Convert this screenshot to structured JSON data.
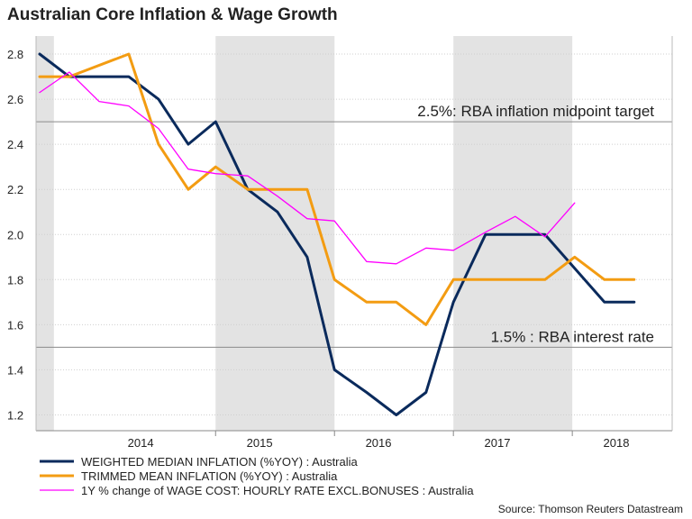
{
  "chart_data": {
    "type": "line",
    "title": "Australian Core Inflation & Wage Growth",
    "source": "Source: Thomson Reuters Datastream",
    "xlabel": "",
    "ylabel": "",
    "x_ticks": [
      {
        "label": "2014",
        "x": 2014.0
      },
      {
        "label": "2015",
        "x": 2015.0
      },
      {
        "label": "2016",
        "x": 2016.0
      },
      {
        "label": "2017",
        "x": 2017.0
      },
      {
        "label": "2018",
        "x": 2018.0
      }
    ],
    "xlim": [
      2013.12,
      2018.47
    ],
    "ylim": [
      1.13,
      2.88
    ],
    "y_ticks": [
      1.2,
      1.4,
      1.6,
      1.8,
      2.0,
      2.2,
      2.4,
      2.6,
      2.8
    ],
    "grid": true,
    "shaded_periods": [
      [
        2013.12,
        2013.27
      ],
      [
        2014.63,
        2015.63
      ],
      [
        2016.63,
        2017.63
      ]
    ],
    "reference_lines": [
      {
        "y": 2.5,
        "label": "2.5%: RBA inflation midpoint target"
      },
      {
        "y": 1.5,
        "label": "1.5% : RBA interest rate"
      }
    ],
    "legend_position": "bottom",
    "series": [
      {
        "name": "WEIGHTED MEDIAN INFLATION (%YOY) : Australia",
        "color": "#0a2a5c",
        "x": [
          2013.15,
          2013.4,
          2013.9,
          2014.15,
          2014.4,
          2014.63,
          2014.9,
          2015.15,
          2015.4,
          2015.63,
          2015.9,
          2016.15,
          2016.4,
          2016.63,
          2016.9,
          2017.4,
          2017.9,
          2018.15
        ],
        "values": [
          2.8,
          2.7,
          2.7,
          2.6,
          2.4,
          2.5,
          2.2,
          2.1,
          1.9,
          1.4,
          1.3,
          1.2,
          1.3,
          1.7,
          2.0,
          2.0,
          1.7,
          1.7
        ]
      },
      {
        "name": "TRIMMED MEAN INFLATION (%YOY) : Australia",
        "color": "#f39c12",
        "x": [
          2013.15,
          2013.4,
          2013.9,
          2014.15,
          2014.4,
          2014.63,
          2014.9,
          2015.15,
          2015.4,
          2015.63,
          2015.9,
          2016.15,
          2016.4,
          2016.63,
          2016.9,
          2017.4,
          2017.65,
          2017.9,
          2018.15
        ],
        "values": [
          2.7,
          2.7,
          2.8,
          2.4,
          2.2,
          2.3,
          2.2,
          2.2,
          2.2,
          1.8,
          1.7,
          1.7,
          1.6,
          1.8,
          1.8,
          1.8,
          1.9,
          1.8,
          1.8
        ]
      },
      {
        "name": "1Y % change of WAGE COST: HOURLY RATE EXCL.BONUSES : Australia",
        "color": "#ff00ff",
        "x": [
          2013.15,
          2013.4,
          2013.65,
          2013.9,
          2014.15,
          2014.4,
          2014.63,
          2014.9,
          2015.15,
          2015.4,
          2015.63,
          2015.9,
          2016.15,
          2016.4,
          2016.63,
          2016.9,
          2017.15,
          2017.4,
          2017.65,
          2017.9
        ],
        "values": [
          2.63,
          2.72,
          2.59,
          2.57,
          2.47,
          2.29,
          2.27,
          2.26,
          2.17,
          2.07,
          2.06,
          1.88,
          1.87,
          1.94,
          1.93,
          2.01,
          2.08,
          1.99,
          2.14,
          null
        ]
      }
    ]
  }
}
